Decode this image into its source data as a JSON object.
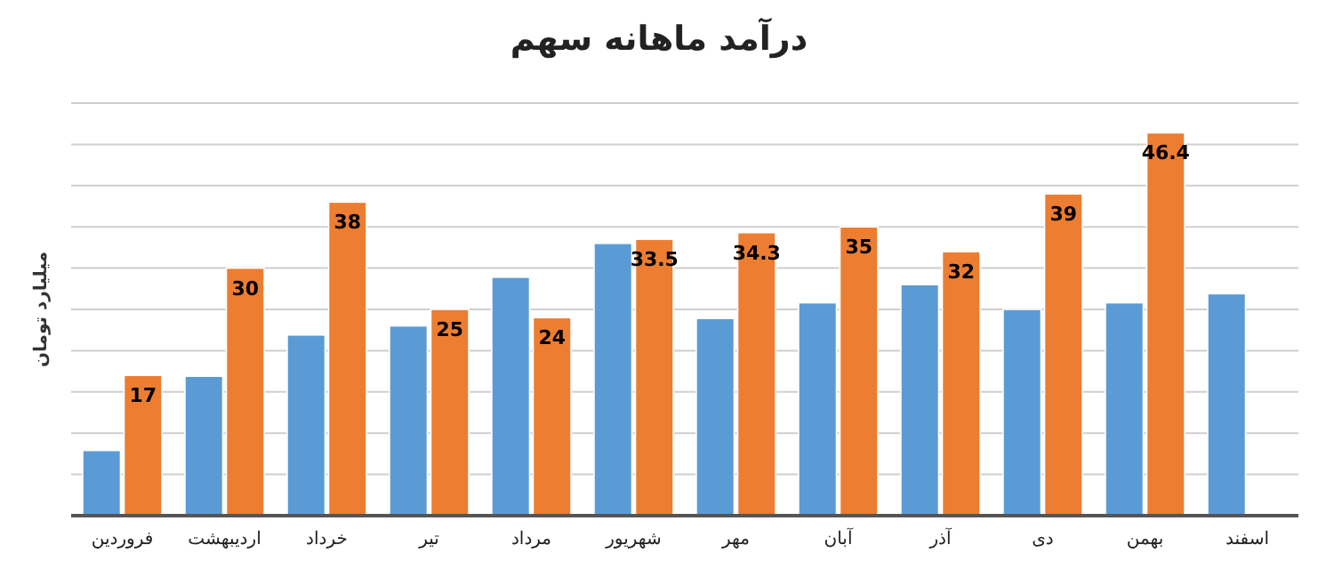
{
  "chart_data": {
    "type": "bar",
    "title": "درآمد ماهانه سهم",
    "ylabel": "میلیارد تومان",
    "categories": [
      "فروردین",
      "اردیبهشت",
      "خرداد",
      "تیر",
      "مرداد",
      "شهریور",
      "مهر",
      "آبان",
      "آذر",
      "دی",
      "بهمن",
      "اسفند"
    ],
    "series": [
      {
        "color": "#5b9bd5",
        "values": [
          7.9,
          16.9,
          21.9,
          23.0,
          28.9,
          33.0,
          23.9,
          25.8,
          28.0,
          25.0,
          25.8,
          26.9
        ]
      },
      {
        "color": "#ed7d31",
        "values": [
          17,
          30,
          38,
          25,
          24,
          33.5,
          34.3,
          35,
          32,
          39,
          46.4,
          null
        ],
        "value_labels": [
          "17",
          "30",
          "38",
          "25",
          "24",
          "33.5",
          "34.3",
          "35",
          "32",
          "39",
          "46.4",
          null
        ]
      }
    ],
    "ylim": [
      0,
      50
    ],
    "yticks": [
      {
        "value": 0,
        "label": null
      },
      {
        "value": 5,
        "label": null
      },
      {
        "value": 10,
        "label": null
      },
      {
        "value": 15,
        "label": null
      },
      {
        "value": 20,
        "label": null
      },
      {
        "value": 25,
        "label": null
      },
      {
        "value": 30,
        "label": null
      },
      {
        "value": 35,
        "label": null
      },
      {
        "value": 40,
        "label": null
      },
      {
        "value": 45,
        "label": null
      },
      {
        "value": 50,
        "label": null
      }
    ],
    "tick_labels": "x",
    "grid": "y"
  }
}
